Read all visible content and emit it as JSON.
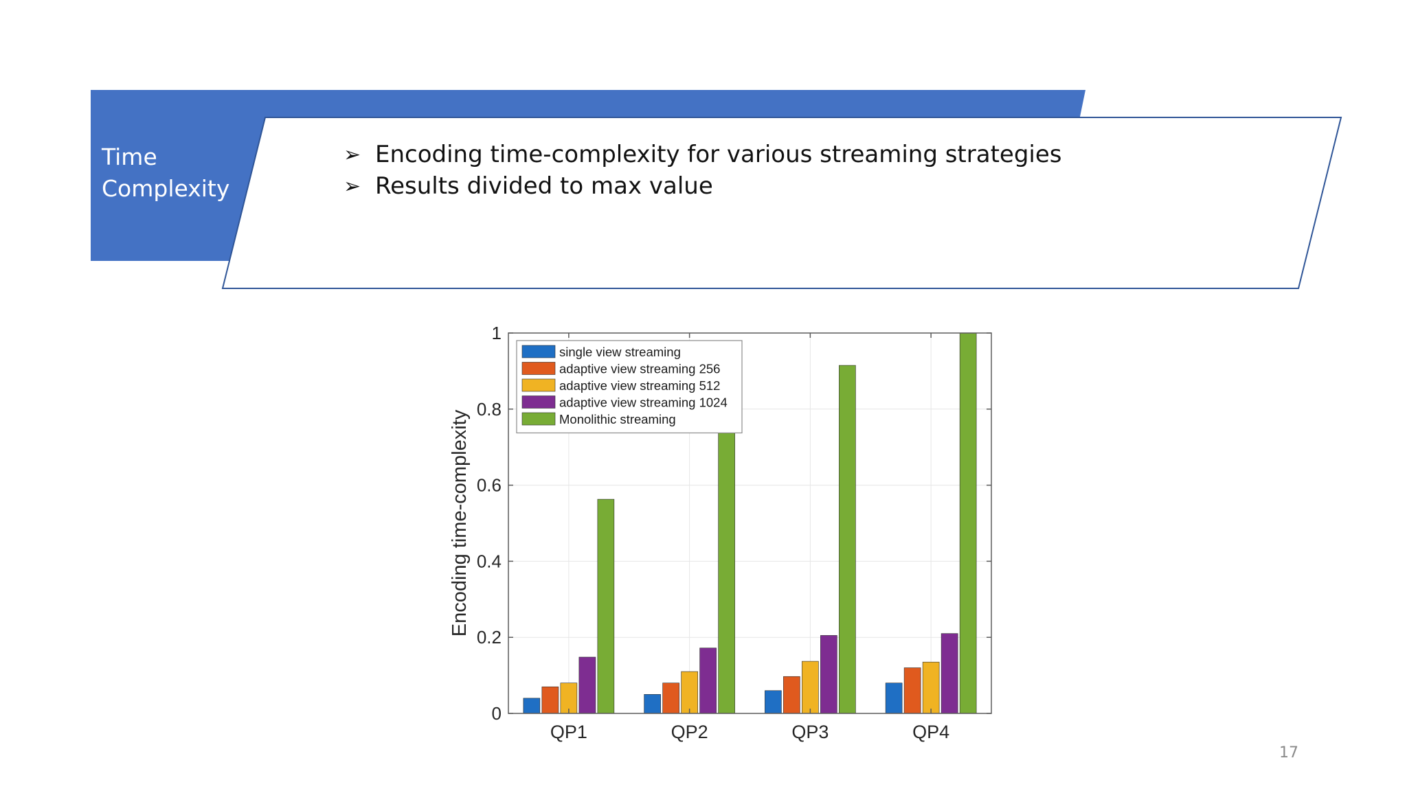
{
  "slide": {
    "section_title_lines": [
      "Time",
      "Complexity"
    ],
    "bullets": [
      "Encoding time-complexity for various streaming strategies",
      "Results divided to max value"
    ],
    "page_number": "17",
    "colors": {
      "banner": "#4472c4",
      "panel_border": "#2f5597"
    }
  },
  "chart_data": {
    "type": "bar",
    "categories": [
      "QP1",
      "QP2",
      "QP3",
      "QP4"
    ],
    "ylabel": "Encoding time-complexity",
    "xlabel": "",
    "ylim": [
      0,
      1
    ],
    "yticks": [
      0,
      0.2,
      0.4,
      0.6,
      0.8,
      1
    ],
    "ytick_labels": [
      "0",
      "0.2",
      "0.4",
      "0.6",
      "0.8",
      "1"
    ],
    "grid": true,
    "legend_position": "top-left",
    "series": [
      {
        "name": "single view streaming",
        "color": "#1f6fc4",
        "values": [
          0.04,
          0.05,
          0.06,
          0.08
        ]
      },
      {
        "name": "adaptive view streaming 256",
        "color": "#e05a1e",
        "values": [
          0.07,
          0.08,
          0.097,
          0.12
        ]
      },
      {
        "name": "adaptive view streaming 512",
        "color": "#f0b323",
        "values": [
          0.08,
          0.11,
          0.137,
          0.135
        ]
      },
      {
        "name": "adaptive view streaming 1024",
        "color": "#7e2d91",
        "values": [
          0.148,
          0.172,
          0.205,
          0.21
        ]
      },
      {
        "name": "Monolithic streaming",
        "color": "#78ac35",
        "values": [
          0.563,
          0.76,
          0.915,
          1.0
        ]
      }
    ]
  }
}
